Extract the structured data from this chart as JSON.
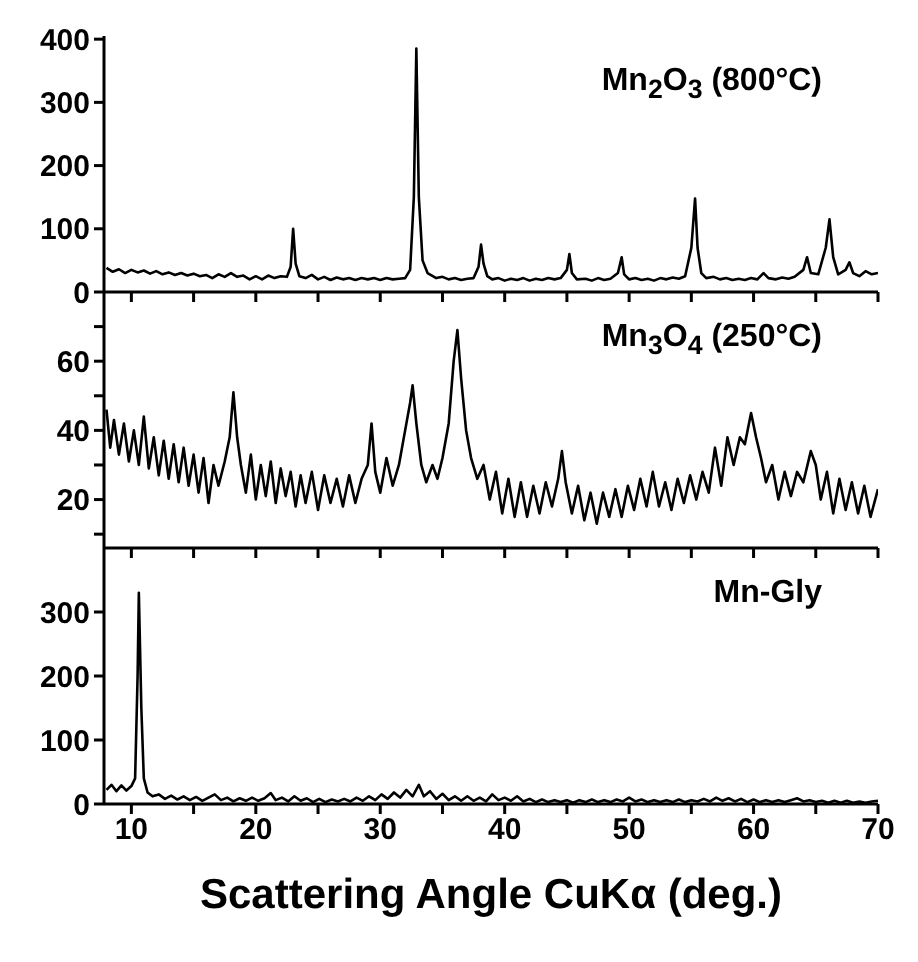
{
  "chart_data": [
    {
      "type": "line",
      "annotations": [
        "Mn$_{2}$O$_{3}$ (800°C)"
      ],
      "xlim": [
        7.8,
        70
      ],
      "xticks": [
        {
          "value": 10,
          "label": null
        },
        {
          "value": 15,
          "label": null
        },
        {
          "value": 20,
          "label": null
        },
        {
          "value": 25,
          "label": null
        },
        {
          "value": 30,
          "label": null
        },
        {
          "value": 35,
          "label": null
        },
        {
          "value": 40,
          "label": null
        },
        {
          "value": 45,
          "label": null
        },
        {
          "value": 50,
          "label": null
        },
        {
          "value": 55,
          "label": null
        },
        {
          "value": 60,
          "label": null
        },
        {
          "value": 65,
          "label": null
        },
        {
          "value": 70,
          "label": null
        }
      ],
      "ylim": [
        0,
        405
      ],
      "yticks": [
        0,
        100,
        200,
        300,
        400
      ],
      "tick_labels": "y",
      "x": [
        8,
        8.5,
        9,
        9.5,
        10,
        10.5,
        11,
        11.5,
        12,
        12.5,
        13,
        13.5,
        14,
        14.5,
        15,
        15.5,
        16,
        16.5,
        17,
        17.5,
        18,
        18.5,
        19,
        19.5,
        20,
        20.5,
        21,
        21.5,
        22,
        22.5,
        22.8,
        23.0,
        23.2,
        23.5,
        24,
        24.5,
        25,
        25.5,
        26,
        26.5,
        27,
        27.5,
        28,
        28.5,
        29,
        29.5,
        30,
        30.5,
        31,
        31.5,
        32,
        32.4,
        32.7,
        32.9,
        33.1,
        33.4,
        33.8,
        34.5,
        35,
        35.5,
        36,
        36.5,
        37,
        37.5,
        37.9,
        38.1,
        38.3,
        38.6,
        39,
        39.5,
        40,
        40.5,
        41,
        41.5,
        42,
        42.5,
        43,
        43.5,
        44,
        44.5,
        45.0,
        45.2,
        45.4,
        45.8,
        46.5,
        47,
        47.5,
        48,
        48.5,
        49.1,
        49.4,
        49.6,
        50,
        50.5,
        51,
        51.5,
        52,
        52.5,
        53,
        53.5,
        54,
        54.5,
        55.0,
        55.3,
        55.5,
        55.8,
        56.2,
        56.8,
        57.3,
        57.8,
        58.3,
        58.8,
        59.3,
        59.8,
        60.3,
        60.8,
        61.2,
        61.8,
        62.3,
        62.8,
        63.3,
        64.0,
        64.3,
        64.6,
        65.2,
        65.8,
        66.1,
        66.4,
        66.8,
        67.4,
        67.7,
        68.0,
        68.5,
        69,
        69.5,
        70
      ],
      "series": [
        {
          "color": "#000000",
          "values": [
            38,
            32,
            36,
            30,
            35,
            31,
            34,
            29,
            33,
            28,
            31,
            27,
            30,
            26,
            29,
            25,
            27,
            22,
            28,
            24,
            30,
            24,
            26,
            20,
            25,
            20,
            26,
            22,
            25,
            24,
            40,
            100,
            45,
            25,
            22,
            27,
            20,
            24,
            19,
            23,
            20,
            22,
            19,
            22,
            20,
            22,
            19,
            22,
            20,
            21,
            22,
            35,
            150,
            385,
            150,
            50,
            30,
            22,
            24,
            20,
            22,
            19,
            21,
            22,
            40,
            75,
            45,
            25,
            20,
            22,
            18,
            21,
            19,
            22,
            18,
            21,
            19,
            22,
            20,
            22,
            35,
            60,
            30,
            20,
            21,
            18,
            22,
            19,
            21,
            30,
            55,
            28,
            20,
            22,
            19,
            21,
            18,
            22,
            20,
            23,
            21,
            25,
            70,
            148,
            70,
            30,
            22,
            24,
            20,
            22,
            19,
            21,
            19,
            22,
            20,
            30,
            22,
            20,
            23,
            21,
            24,
            35,
            55,
            30,
            28,
            70,
            115,
            55,
            28,
            35,
            47,
            30,
            25,
            33,
            28,
            30
          ]
        }
      ]
    },
    {
      "type": "line",
      "annotations": [
        "Mn$_{3}$O$_{4}$ (250°C)"
      ],
      "xlim": [
        7.8,
        70
      ],
      "xticks": [
        {
          "value": 10,
          "label": null
        },
        {
          "value": 15,
          "label": null
        },
        {
          "value": 20,
          "label": null
        },
        {
          "value": 25,
          "label": null
        },
        {
          "value": 30,
          "label": null
        },
        {
          "value": 35,
          "label": null
        },
        {
          "value": 40,
          "label": null
        },
        {
          "value": 45,
          "label": null
        },
        {
          "value": 50,
          "label": null
        },
        {
          "value": 55,
          "label": null
        },
        {
          "value": 60,
          "label": null
        },
        {
          "value": 65,
          "label": null
        },
        {
          "value": 70,
          "label": null
        }
      ],
      "ylim": [
        6,
        80
      ],
      "yticks": [
        {
          "value": 10,
          "label": null
        },
        20,
        {
          "value": 30,
          "label": null
        },
        40,
        {
          "value": 50,
          "label": null
        },
        60,
        {
          "value": 70,
          "label": null
        }
      ],
      "tick_labels": "y",
      "x": [
        8,
        8.3,
        8.6,
        9,
        9.4,
        9.8,
        10.2,
        10.6,
        11,
        11.4,
        11.8,
        12.2,
        12.6,
        13,
        13.4,
        13.8,
        14.2,
        14.6,
        15,
        15.4,
        15.8,
        16.2,
        16.6,
        17,
        17.5,
        17.9,
        18.2,
        18.5,
        18.8,
        19.2,
        19.6,
        20,
        20.4,
        20.8,
        21.2,
        21.6,
        22,
        22.4,
        22.8,
        23.2,
        23.6,
        24,
        24.5,
        25,
        25.5,
        26,
        26.5,
        27,
        27.5,
        28,
        28.5,
        29,
        29.3,
        29.6,
        30,
        30.5,
        31,
        31.5,
        32,
        32.4,
        32.6,
        32.9,
        33.3,
        33.7,
        34.2,
        34.6,
        35,
        35.5,
        35.9,
        36.2,
        36.5,
        36.9,
        37.3,
        37.8,
        38.3,
        38.8,
        39.3,
        39.8,
        40.3,
        40.8,
        41.3,
        41.8,
        42.3,
        42.8,
        43.3,
        43.8,
        44.3,
        44.6,
        44.9,
        45.4,
        45.9,
        46.4,
        46.9,
        47.4,
        47.9,
        48.4,
        48.9,
        49.4,
        49.9,
        50.4,
        50.9,
        51.4,
        51.9,
        52.4,
        52.9,
        53.4,
        53.9,
        54.4,
        54.9,
        55.4,
        55.9,
        56.4,
        56.9,
        57.4,
        57.9,
        58.4,
        58.9,
        59.3,
        59.8,
        60.2,
        60.6,
        61,
        61.5,
        62,
        62.5,
        63,
        63.5,
        64,
        64.6,
        65,
        65.4,
        65.9,
        66.4,
        66.9,
        67.4,
        67.9,
        68.4,
        68.9,
        69.4,
        70
      ],
      "series": [
        {
          "color": "#000000",
          "values": [
            46,
            35,
            43,
            33,
            42,
            31,
            40,
            30,
            44,
            29,
            38,
            27,
            37,
            26,
            36,
            25,
            35,
            24,
            33,
            22,
            32,
            19,
            30,
            24,
            31,
            38,
            51,
            38,
            30,
            22,
            33,
            20,
            30,
            21,
            31,
            19,
            29,
            21,
            28,
            18,
            27,
            19,
            28,
            17,
            27,
            19,
            26,
            18,
            27,
            19,
            26,
            30,
            42,
            28,
            22,
            32,
            24,
            30,
            40,
            48,
            53,
            42,
            30,
            25,
            30,
            26,
            32,
            42,
            60,
            69,
            55,
            40,
            32,
            26,
            30,
            20,
            28,
            16,
            26,
            15,
            25,
            15,
            24,
            16,
            25,
            18,
            26,
            34,
            25,
            16,
            24,
            14,
            22,
            13,
            22,
            15,
            23,
            15,
            24,
            17,
            26,
            18,
            28,
            18,
            25,
            17,
            26,
            19,
            27,
            20,
            28,
            22,
            35,
            24,
            38,
            30,
            38,
            36,
            45,
            38,
            32,
            25,
            30,
            20,
            28,
            21,
            28,
            25,
            34,
            30,
            20,
            28,
            16,
            26,
            17,
            25,
            16,
            24,
            15,
            23
          ]
        }
      ]
    },
    {
      "type": "line",
      "annotations": [
        "Mn-Gly"
      ],
      "xlabel": "Scattering Angle CuKα (deg.)",
      "xlim": [
        7.8,
        70
      ],
      "xticks": [
        10,
        {
          "value": 15,
          "label": null
        },
        20,
        {
          "value": 25,
          "label": null
        },
        30,
        {
          "value": 35,
          "label": null
        },
        40,
        {
          "value": 45,
          "label": null
        },
        50,
        {
          "value": 55,
          "label": null
        },
        60,
        {
          "value": 65,
          "label": null
        },
        70
      ],
      "ylim": [
        0,
        400
      ],
      "yticks": [
        0,
        100,
        200,
        300
      ],
      "x": [
        8,
        8.4,
        8.8,
        9.2,
        9.6,
        10,
        10.3,
        10.5,
        10.6,
        10.8,
        11,
        11.3,
        11.7,
        12.2,
        12.7,
        13.2,
        13.7,
        14.2,
        14.7,
        15.2,
        15.7,
        16.2,
        16.7,
        17.2,
        17.7,
        18.2,
        18.7,
        19.2,
        19.7,
        20.2,
        20.7,
        21.2,
        21.6,
        22.1,
        22.6,
        23.1,
        23.6,
        24.1,
        24.6,
        25.1,
        25.6,
        26.1,
        26.6,
        27.1,
        27.6,
        28.1,
        28.6,
        29.1,
        29.6,
        30.1,
        30.6,
        31.1,
        31.6,
        32.1,
        32.6,
        33.1,
        33.5,
        34,
        34.5,
        35,
        35.5,
        36,
        36.5,
        37,
        37.5,
        38,
        38.5,
        39,
        39.5,
        40,
        40.5,
        41,
        41.5,
        42,
        42.5,
        43,
        43.5,
        44,
        44.5,
        45,
        45.5,
        46,
        46.5,
        47,
        47.5,
        48,
        48.5,
        49,
        49.5,
        50,
        50.5,
        51,
        51.5,
        52,
        52.5,
        53,
        53.5,
        54,
        54.5,
        55,
        55.5,
        56,
        56.5,
        57,
        57.5,
        58,
        58.5,
        59,
        59.5,
        60,
        60.5,
        61,
        61.5,
        62,
        62.5,
        63,
        63.5,
        64,
        64.5,
        65,
        65.5,
        66,
        66.5,
        67,
        67.5,
        68,
        68.5,
        69,
        69.5,
        70
      ],
      "series": [
        {
          "color": "#000000",
          "values": [
            22,
            30,
            20,
            29,
            21,
            28,
            40,
            200,
            330,
            150,
            40,
            18,
            12,
            15,
            8,
            13,
            7,
            12,
            6,
            11,
            5,
            10,
            15,
            6,
            10,
            4,
            9,
            5,
            10,
            5,
            9,
            17,
            6,
            10,
            4,
            12,
            5,
            9,
            3,
            8,
            3,
            7,
            4,
            8,
            4,
            10,
            5,
            12,
            6,
            15,
            8,
            18,
            10,
            22,
            12,
            30,
            12,
            20,
            8,
            16,
            6,
            12,
            5,
            12,
            5,
            10,
            4,
            15,
            6,
            10,
            5,
            12,
            4,
            8,
            3,
            7,
            3,
            6,
            3,
            6,
            2,
            6,
            3,
            7,
            3,
            6,
            3,
            7,
            4,
            10,
            4,
            7,
            3,
            6,
            3,
            6,
            3,
            7,
            3,
            6,
            4,
            8,
            4,
            10,
            5,
            9,
            4,
            8,
            3,
            7,
            3,
            6,
            3,
            6,
            3,
            6,
            9,
            4,
            6,
            3,
            5,
            2,
            5,
            2,
            5,
            2,
            4,
            2,
            4,
            5
          ]
        }
      ]
    }
  ]
}
